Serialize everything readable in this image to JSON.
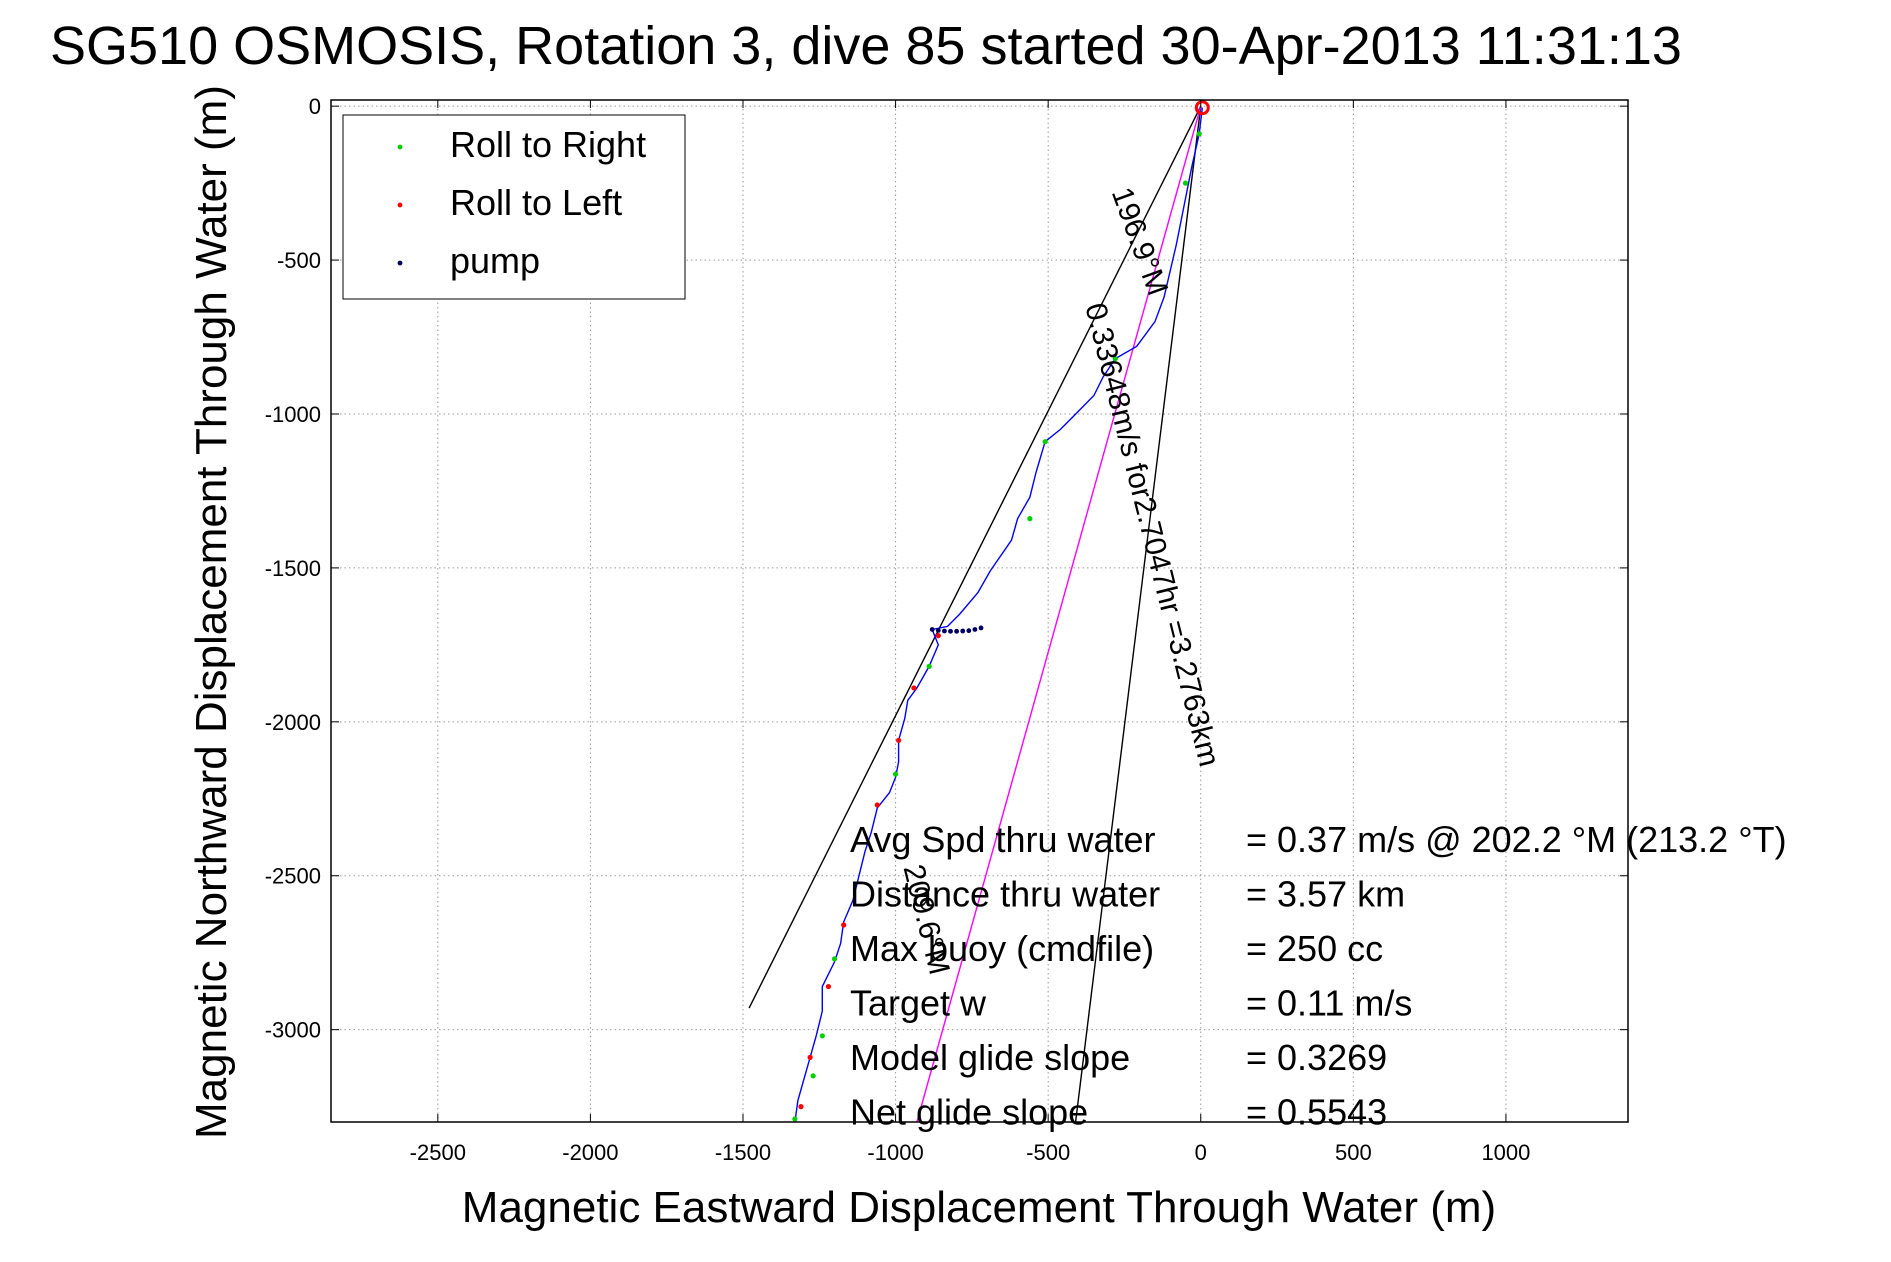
{
  "chart_data": {
    "type": "line",
    "title": "SG510 OSMOSIS, Rotation 3, dive 85 started 30-Apr-2013 11:31:13",
    "xlabel": "Magnetic Eastward Displacement Through Water (m)",
    "ylabel": "Magnetic Northward Displacement Through Water (m)",
    "xlim": [
      -2850,
      1400
    ],
    "ylim": [
      -3300,
      20
    ],
    "xticks": [
      -2500,
      -2000,
      -1500,
      -1000,
      -500,
      0,
      500,
      1000
    ],
    "yticks": [
      0,
      -500,
      -1000,
      -1500,
      -2000,
      -2500,
      -3000
    ],
    "grid": true,
    "legend_position": "top-left",
    "legend": [
      {
        "label": "Roll to Right",
        "color": "#00d000"
      },
      {
        "label": "Roll to Left",
        "color": "#ff0000"
      },
      {
        "label": "pump",
        "color": "#000060"
      }
    ],
    "track": {
      "color": "#0000ff",
      "points": [
        [
          5,
          -5
        ],
        [
          -5,
          -90
        ],
        [
          -30,
          -200
        ],
        [
          -50,
          -300
        ],
        [
          -80,
          -450
        ],
        [
          -120,
          -620
        ],
        [
          -150,
          -700
        ],
        [
          -210,
          -780
        ],
        [
          -280,
          -820
        ],
        [
          -320,
          -880
        ],
        [
          -350,
          -940
        ],
        [
          -420,
          -1010
        ],
        [
          -460,
          -1050
        ],
        [
          -510,
          -1090
        ],
        [
          -540,
          -1190
        ],
        [
          -560,
          -1270
        ],
        [
          -600,
          -1340
        ],
        [
          -620,
          -1410
        ],
        [
          -690,
          -1510
        ],
        [
          -730,
          -1580
        ],
        [
          -790,
          -1650
        ],
        [
          -830,
          -1690
        ],
        [
          -880,
          -1700
        ],
        [
          -860,
          -1750
        ],
        [
          -890,
          -1820
        ],
        [
          -930,
          -1890
        ],
        [
          -960,
          -1930
        ],
        [
          -970,
          -1990
        ],
        [
          -990,
          -2060
        ],
        [
          -990,
          -2130
        ],
        [
          -1000,
          -2180
        ],
        [
          -1020,
          -2230
        ],
        [
          -1060,
          -2280
        ],
        [
          -1080,
          -2360
        ],
        [
          -1100,
          -2420
        ],
        [
          -1120,
          -2500
        ],
        [
          -1140,
          -2580
        ],
        [
          -1170,
          -2650
        ],
        [
          -1180,
          -2720
        ],
        [
          -1200,
          -2780
        ],
        [
          -1240,
          -2860
        ],
        [
          -1240,
          -2940
        ],
        [
          -1260,
          -3020
        ],
        [
          -1280,
          -3090
        ],
        [
          -1300,
          -3160
        ],
        [
          -1320,
          -3230
        ],
        [
          -1330,
          -3300
        ]
      ]
    },
    "pump_points": [
      [
        -880,
        -1700
      ],
      [
        -860,
        -1703
      ],
      [
        -840,
        -1705
      ],
      [
        -820,
        -1706
      ],
      [
        -800,
        -1706
      ],
      [
        -780,
        -1705
      ],
      [
        -760,
        -1704
      ],
      [
        -740,
        -1700
      ],
      [
        -720,
        -1695
      ]
    ],
    "roll_right_points": [
      [
        -5,
        -90
      ],
      [
        -50,
        -250
      ],
      [
        -280,
        -820
      ],
      [
        -510,
        -1090
      ],
      [
        -560,
        -1340
      ],
      [
        -890,
        -1820
      ],
      [
        -1000,
        -2170
      ],
      [
        -1200,
        -2770
      ],
      [
        -1240,
        -3020
      ],
      [
        -1270,
        -3150
      ],
      [
        -1330,
        -3290
      ]
    ],
    "roll_left_points": [
      [
        -860,
        -1720
      ],
      [
        -940,
        -1890
      ],
      [
        -990,
        -2060
      ],
      [
        -1060,
        -2270
      ],
      [
        -1170,
        -2660
      ],
      [
        -1220,
        -2860
      ],
      [
        -1280,
        -3090
      ],
      [
        -1310,
        -3250
      ]
    ],
    "reference_lines": [
      {
        "color": "#000000",
        "points": [
          [
            0,
            0
          ],
          [
            -1480,
            -2930
          ]
        ]
      },
      {
        "color": "#000000",
        "points": [
          [
            0,
            0
          ],
          [
            -410,
            -3300
          ]
        ]
      },
      {
        "color": "#ff00ff",
        "points": [
          [
            0,
            0
          ],
          [
            -930,
            -3300
          ]
        ]
      }
    ],
    "line_labels": [
      {
        "text": "196.9°M",
        "x": -230,
        "y": -450,
        "angle": 70
      },
      {
        "text": "0.33648m/s for2.7047hr =3.2763km",
        "x": -190,
        "y": -1400,
        "angle": 76
      },
      {
        "text": "209.6°M",
        "x": -930,
        "y": -2650,
        "angle": 76
      }
    ],
    "annotations": [
      {
        "label": "Avg Spd thru water",
        "value": "=  0.37 m/s @ 202.2 °M (213.2 °T)"
      },
      {
        "label": "Distance thru water",
        "value": "=  3.57 km"
      },
      {
        "label": "Max buoy (cmdfile)",
        "value": "= 250 cc"
      },
      {
        "label": "Target w",
        "value": "= 0.11 m/s"
      },
      {
        "label": "Model glide slope",
        "value": "= 0.3269"
      },
      {
        "label": "Net glide slope",
        "value": "= 0.5543"
      }
    ]
  }
}
